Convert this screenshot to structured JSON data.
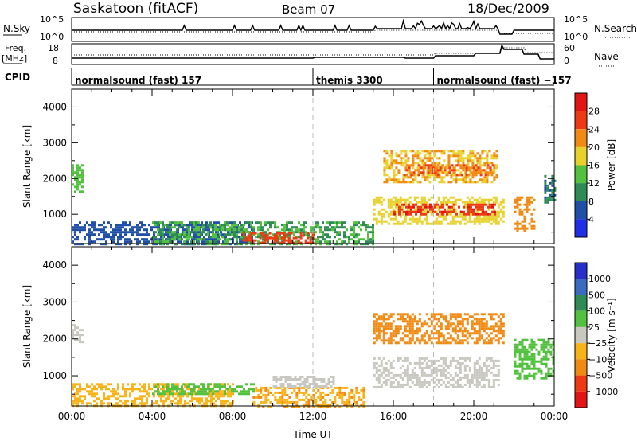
{
  "header": {
    "station": "Saskatoon (fitACF)",
    "beam": "Beam 07",
    "date": "18/Dec/2009"
  },
  "side_labels": {
    "nsky": "N.Sky",
    "freq_line1": "Freq.",
    "freq_line2": "[MHz]",
    "cpid": "CPID",
    "nsearch": "N.Search",
    "nave": "Nave"
  },
  "nsky_axis": {
    "top": "10^5",
    "bottom": "10^0"
  },
  "freq_axis": {
    "top": "18",
    "bottom": "8"
  },
  "nave_axis": {
    "top": "60",
    "bottom": "0"
  },
  "cpid_segments": [
    {
      "start": 0.0,
      "end": 12.0,
      "label": "normalsound (fast) 157"
    },
    {
      "start": 12.0,
      "end": 18.0,
      "label": "themis 3300"
    },
    {
      "start": 18.0,
      "end": 24.0,
      "label": "normalsound (fast) −157"
    }
  ],
  "colors": {
    "power": [
      "#1f2ee8",
      "#1f4fa8",
      "#2f8a55",
      "#52c13e",
      "#e8d12a",
      "#f08a12",
      "#ee3a14",
      "#e21414"
    ],
    "velocity": [
      "#2630c8",
      "#3a6bc0",
      "#2f8a55",
      "#52c13e",
      "#c8c8c0",
      "#f7b317",
      "#f08a12",
      "#ee3a14",
      "#e21414"
    ]
  },
  "chart_data": [
    {
      "type": "heatmap",
      "panel": "power",
      "xlabel": "Time UT",
      "ylabel": "Slant Range [km]",
      "xlim": [
        0,
        24
      ],
      "ylim": [
        180,
        4500
      ],
      "yticks": [
        "1000",
        "2000",
        "3000",
        "4000"
      ],
      "colorbar_label": "Power [dB]",
      "colorbar_ticks": [
        "4",
        "8",
        "12",
        "16",
        "20",
        "24",
        "28"
      ],
      "regions": [
        {
          "t": [
            0.0,
            0.5
          ],
          "r": [
            1600,
            2400
          ],
          "v": 14
        },
        {
          "t": [
            0.0,
            9.0
          ],
          "r": [
            180,
            800
          ],
          "v": 6
        },
        {
          "t": [
            4.0,
            15.0
          ],
          "r": [
            180,
            800
          ],
          "v": 12
        },
        {
          "t": [
            8.5,
            12.0
          ],
          "r": [
            180,
            500
          ],
          "v": 26
        },
        {
          "t": [
            15.0,
            21.5
          ],
          "r": [
            700,
            1500
          ],
          "v": 18
        },
        {
          "t": [
            15.5,
            21.2
          ],
          "r": [
            1900,
            2800
          ],
          "v": 20
        },
        {
          "t": [
            16.0,
            21.0
          ],
          "r": [
            1000,
            1300
          ],
          "v": 27
        },
        {
          "t": [
            16.5,
            21.0
          ],
          "r": [
            2100,
            2400
          ],
          "v": 24
        },
        {
          "t": [
            22.0,
            23.0
          ],
          "r": [
            500,
            1500
          ],
          "v": 22
        },
        {
          "t": [
            23.5,
            24.0
          ],
          "r": [
            1300,
            2100
          ],
          "v": 9
        }
      ]
    },
    {
      "type": "heatmap",
      "panel": "velocity",
      "xlabel": "Time UT",
      "ylabel": "Slant Range [km]",
      "xlim": [
        0,
        24
      ],
      "ylim": [
        180,
        4500
      ],
      "yticks": [
        "1000",
        "2000",
        "3000",
        "4000"
      ],
      "xticks": [
        "00:00",
        "04:00",
        "08:00",
        "12:00",
        "16:00",
        "20:00",
        "00:00"
      ],
      "colorbar_label": "Velocity [m s⁻¹]",
      "colorbar_ticks": [
        "1000",
        "500",
        "100",
        "25",
        "−25",
        "−100",
        "−500",
        "−1000"
      ],
      "regions": [
        {
          "t": [
            0.0,
            0.5
          ],
          "r": [
            1900,
            2400
          ],
          "v": 0
        },
        {
          "t": [
            0.0,
            8.0
          ],
          "r": [
            180,
            800
          ],
          "v": -50
        },
        {
          "t": [
            4.0,
            9.0
          ],
          "r": [
            500,
            800
          ],
          "v": 40
        },
        {
          "t": [
            9.0,
            14.5
          ],
          "r": [
            180,
            700
          ],
          "v": -90
        },
        {
          "t": [
            10.0,
            13.0
          ],
          "r": [
            700,
            1000
          ],
          "v": 0
        },
        {
          "t": [
            15.0,
            21.5
          ],
          "r": [
            1900,
            2700
          ],
          "v": -200
        },
        {
          "t": [
            15.0,
            21.2
          ],
          "r": [
            700,
            1500
          ],
          "v": 0
        },
        {
          "t": [
            22.0,
            24.0
          ],
          "r": [
            900,
            2000
          ],
          "v": 80
        }
      ]
    }
  ]
}
